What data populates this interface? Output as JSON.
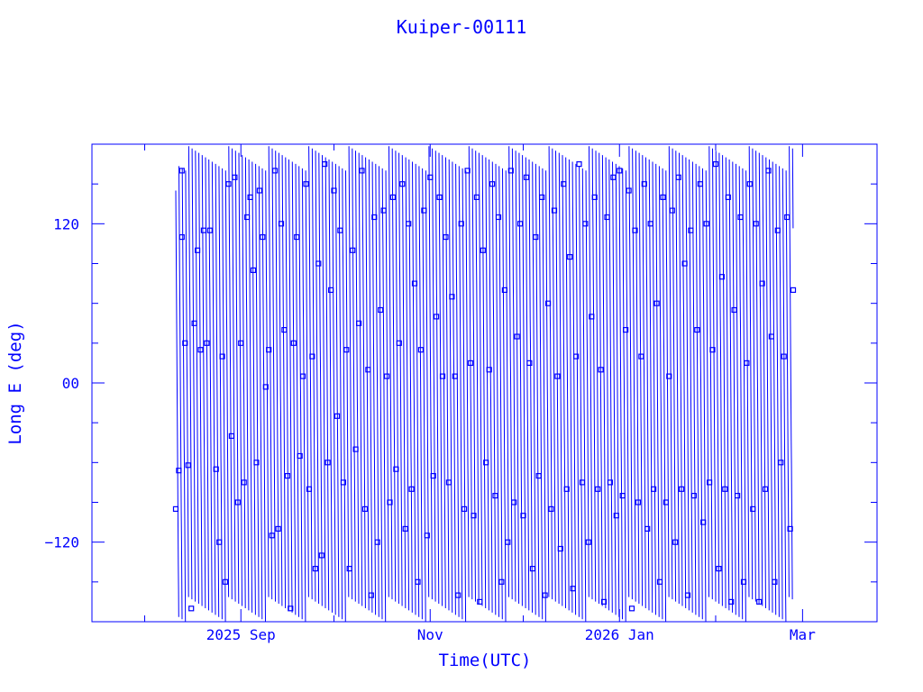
{
  "chart_data": {
    "type": "scatter",
    "title": "Kuiper-00111",
    "xlabel": "Time(UTC)",
    "ylabel": "Long E (deg)",
    "xlim": [
      "2025-07-15",
      "2026-03-25"
    ],
    "ylim": [
      -180,
      180
    ],
    "x_ticks": [
      {
        "date": "2025-09-01",
        "label": "2025 Sep"
      },
      {
        "date": "2025-11-01",
        "label": "Nov"
      },
      {
        "date": "2026-01-01",
        "label": "2026 Jan"
      },
      {
        "date": "2026-03-01",
        "label": "Mar"
      }
    ],
    "y_ticks": [
      {
        "value": -120,
        "label": "−120"
      },
      {
        "value": 0,
        "label": "00"
      },
      {
        "value": 120,
        "label": "120"
      }
    ],
    "data_range": {
      "start": "2025-08-11",
      "end": "2026-02-26"
    },
    "series": [
      {
        "values": [
          {
            "x": "2025-08-11",
            "y": -95
          },
          {
            "x": "2025-08-12",
            "y": -66
          },
          {
            "x": "2025-08-13",
            "y": 160
          },
          {
            "x": "2025-08-13",
            "y": 110
          },
          {
            "x": "2025-08-14",
            "y": 30
          },
          {
            "x": "2025-08-15",
            "y": -62
          },
          {
            "x": "2025-08-16",
            "y": -170
          },
          {
            "x": "2025-08-17",
            "y": 45
          },
          {
            "x": "2025-08-18",
            "y": 100
          },
          {
            "x": "2025-08-19",
            "y": 25
          },
          {
            "x": "2025-08-20",
            "y": 115
          },
          {
            "x": "2025-08-21",
            "y": 30
          },
          {
            "x": "2025-08-22",
            "y": 115
          },
          {
            "x": "2025-08-24",
            "y": -65
          },
          {
            "x": "2025-08-25",
            "y": -120
          },
          {
            "x": "2025-08-26",
            "y": 20
          },
          {
            "x": "2025-08-27",
            "y": -150
          },
          {
            "x": "2025-08-28",
            "y": 150
          },
          {
            "x": "2025-08-29",
            "y": -40
          },
          {
            "x": "2025-08-30",
            "y": 155
          },
          {
            "x": "2025-08-31",
            "y": -90
          },
          {
            "x": "2025-09-01",
            "y": 30
          },
          {
            "x": "2025-09-02",
            "y": -75
          },
          {
            "x": "2025-09-03",
            "y": 125
          },
          {
            "x": "2025-09-04",
            "y": 140
          },
          {
            "x": "2025-09-05",
            "y": 85
          },
          {
            "x": "2025-09-06",
            "y": -60
          },
          {
            "x": "2025-09-07",
            "y": 145
          },
          {
            "x": "2025-09-08",
            "y": 110
          },
          {
            "x": "2025-09-09",
            "y": -3
          },
          {
            "x": "2025-09-10",
            "y": 25
          },
          {
            "x": "2025-09-11",
            "y": -115
          },
          {
            "x": "2025-09-12",
            "y": 160
          },
          {
            "x": "2025-09-13",
            "y": -110
          },
          {
            "x": "2025-09-14",
            "y": 120
          },
          {
            "x": "2025-09-15",
            "y": 40
          },
          {
            "x": "2025-09-16",
            "y": -70
          },
          {
            "x": "2025-09-17",
            "y": -170
          },
          {
            "x": "2025-09-18",
            "y": 30
          },
          {
            "x": "2025-09-19",
            "y": 110
          },
          {
            "x": "2025-09-20",
            "y": -55
          },
          {
            "x": "2025-09-21",
            "y": 5
          },
          {
            "x": "2025-09-22",
            "y": 150
          },
          {
            "x": "2025-09-23",
            "y": -80
          },
          {
            "x": "2025-09-24",
            "y": 20
          },
          {
            "x": "2025-09-25",
            "y": -140
          },
          {
            "x": "2025-09-26",
            "y": 90
          },
          {
            "x": "2025-09-27",
            "y": -130
          },
          {
            "x": "2025-09-28",
            "y": 165
          },
          {
            "x": "2025-09-29",
            "y": -60
          },
          {
            "x": "2025-09-30",
            "y": 70
          },
          {
            "x": "2025-10-01",
            "y": 145
          },
          {
            "x": "2025-10-02",
            "y": -25
          },
          {
            "x": "2025-10-03",
            "y": 115
          },
          {
            "x": "2025-10-04",
            "y": -75
          },
          {
            "x": "2025-10-05",
            "y": 25
          },
          {
            "x": "2025-10-06",
            "y": -140
          },
          {
            "x": "2025-10-07",
            "y": 100
          },
          {
            "x": "2025-10-08",
            "y": -50
          },
          {
            "x": "2025-10-09",
            "y": 45
          },
          {
            "x": "2025-10-10",
            "y": 160
          },
          {
            "x": "2025-10-11",
            "y": -95
          },
          {
            "x": "2025-10-12",
            "y": 10
          },
          {
            "x": "2025-10-13",
            "y": -160
          },
          {
            "x": "2025-10-14",
            "y": 125
          },
          {
            "x": "2025-10-15",
            "y": -120
          },
          {
            "x": "2025-10-16",
            "y": 55
          },
          {
            "x": "2025-10-17",
            "y": 130
          },
          {
            "x": "2025-10-18",
            "y": 5
          },
          {
            "x": "2025-10-19",
            "y": -90
          },
          {
            "x": "2025-10-20",
            "y": 140
          },
          {
            "x": "2025-10-21",
            "y": -65
          },
          {
            "x": "2025-10-22",
            "y": 30
          },
          {
            "x": "2025-10-23",
            "y": 150
          },
          {
            "x": "2025-10-24",
            "y": -110
          },
          {
            "x": "2025-10-25",
            "y": 120
          },
          {
            "x": "2025-10-26",
            "y": -80
          },
          {
            "x": "2025-10-27",
            "y": 75
          },
          {
            "x": "2025-10-28",
            "y": -150
          },
          {
            "x": "2025-10-29",
            "y": 25
          },
          {
            "x": "2025-10-30",
            "y": 130
          },
          {
            "x": "2025-10-31",
            "y": -115
          },
          {
            "x": "2025-11-01",
            "y": 155
          },
          {
            "x": "2025-11-02",
            "y": -70
          },
          {
            "x": "2025-11-03",
            "y": 50
          },
          {
            "x": "2025-11-04",
            "y": 140
          },
          {
            "x": "2025-11-05",
            "y": 5
          },
          {
            "x": "2025-11-06",
            "y": 110
          },
          {
            "x": "2025-11-07",
            "y": -75
          },
          {
            "x": "2025-11-08",
            "y": 65
          },
          {
            "x": "2025-11-09",
            "y": 5
          },
          {
            "x": "2025-11-10",
            "y": -160
          },
          {
            "x": "2025-11-11",
            "y": 120
          },
          {
            "x": "2025-11-12",
            "y": -95
          },
          {
            "x": "2025-11-13",
            "y": 160
          },
          {
            "x": "2025-11-14",
            "y": 15
          },
          {
            "x": "2025-11-15",
            "y": -100
          },
          {
            "x": "2025-11-16",
            "y": 140
          },
          {
            "x": "2025-11-17",
            "y": -165
          },
          {
            "x": "2025-11-18",
            "y": 100
          },
          {
            "x": "2025-11-19",
            "y": -60
          },
          {
            "x": "2025-11-20",
            "y": 10
          },
          {
            "x": "2025-11-21",
            "y": 150
          },
          {
            "x": "2025-11-22",
            "y": -85
          },
          {
            "x": "2025-11-23",
            "y": 125
          },
          {
            "x": "2025-11-24",
            "y": -150
          },
          {
            "x": "2025-11-25",
            "y": 70
          },
          {
            "x": "2025-11-26",
            "y": -120
          },
          {
            "x": "2025-11-27",
            "y": 160
          },
          {
            "x": "2025-11-28",
            "y": -90
          },
          {
            "x": "2025-11-29",
            "y": 35
          },
          {
            "x": "2025-11-30",
            "y": 120
          },
          {
            "x": "2025-12-01",
            "y": -100
          },
          {
            "x": "2025-12-02",
            "y": 155
          },
          {
            "x": "2025-12-03",
            "y": 15
          },
          {
            "x": "2025-12-04",
            "y": -140
          },
          {
            "x": "2025-12-05",
            "y": 110
          },
          {
            "x": "2025-12-06",
            "y": -70
          },
          {
            "x": "2025-12-07",
            "y": 140
          },
          {
            "x": "2025-12-08",
            "y": -160
          },
          {
            "x": "2025-12-09",
            "y": 60
          },
          {
            "x": "2025-12-10",
            "y": -95
          },
          {
            "x": "2025-12-11",
            "y": 130
          },
          {
            "x": "2025-12-12",
            "y": 5
          },
          {
            "x": "2025-12-13",
            "y": -125
          },
          {
            "x": "2025-12-14",
            "y": 150
          },
          {
            "x": "2025-12-15",
            "y": -80
          },
          {
            "x": "2025-12-16",
            "y": 95
          },
          {
            "x": "2025-12-17",
            "y": -155
          },
          {
            "x": "2025-12-18",
            "y": 20
          },
          {
            "x": "2025-12-19",
            "y": 165
          },
          {
            "x": "2025-12-20",
            "y": -75
          },
          {
            "x": "2025-12-21",
            "y": 120
          },
          {
            "x": "2025-12-22",
            "y": -120
          },
          {
            "x": "2025-12-23",
            "y": 50
          },
          {
            "x": "2025-12-24",
            "y": 140
          },
          {
            "x": "2025-12-25",
            "y": -80
          },
          {
            "x": "2025-12-26",
            "y": 10
          },
          {
            "x": "2025-12-27",
            "y": -165
          },
          {
            "x": "2025-12-28",
            "y": 125
          },
          {
            "x": "2025-12-29",
            "y": -75
          },
          {
            "x": "2025-12-30",
            "y": 155
          },
          {
            "x": "2025-12-31",
            "y": -100
          },
          {
            "x": "2026-01-01",
            "y": 160
          },
          {
            "x": "2026-01-02",
            "y": -85
          },
          {
            "x": "2026-01-03",
            "y": 40
          },
          {
            "x": "2026-01-04",
            "y": 145
          },
          {
            "x": "2026-01-05",
            "y": -170
          },
          {
            "x": "2026-01-06",
            "y": 115
          },
          {
            "x": "2026-01-07",
            "y": -90
          },
          {
            "x": "2026-01-08",
            "y": 20
          },
          {
            "x": "2026-01-09",
            "y": 150
          },
          {
            "x": "2026-01-10",
            "y": -110
          },
          {
            "x": "2026-01-11",
            "y": 120
          },
          {
            "x": "2026-01-12",
            "y": -80
          },
          {
            "x": "2026-01-13",
            "y": 60
          },
          {
            "x": "2026-01-14",
            "y": -150
          },
          {
            "x": "2026-01-15",
            "y": 140
          },
          {
            "x": "2026-01-16",
            "y": -90
          },
          {
            "x": "2026-01-17",
            "y": 5
          },
          {
            "x": "2026-01-18",
            "y": 130
          },
          {
            "x": "2026-01-19",
            "y": -120
          },
          {
            "x": "2026-01-20",
            "y": 155
          },
          {
            "x": "2026-01-21",
            "y": -80
          },
          {
            "x": "2026-01-22",
            "y": 90
          },
          {
            "x": "2026-01-23",
            "y": -160
          },
          {
            "x": "2026-01-24",
            "y": 115
          },
          {
            "x": "2026-01-25",
            "y": -85
          },
          {
            "x": "2026-01-26",
            "y": 40
          },
          {
            "x": "2026-01-27",
            "y": 150
          },
          {
            "x": "2026-01-28",
            "y": -105
          },
          {
            "x": "2026-01-29",
            "y": 120
          },
          {
            "x": "2026-01-30",
            "y": -75
          },
          {
            "x": "2026-01-31",
            "y": 25
          },
          {
            "x": "2026-02-01",
            "y": 165
          },
          {
            "x": "2026-02-02",
            "y": -140
          },
          {
            "x": "2026-02-03",
            "y": 80
          },
          {
            "x": "2026-02-04",
            "y": -80
          },
          {
            "x": "2026-02-05",
            "y": 140
          },
          {
            "x": "2026-02-06",
            "y": -165
          },
          {
            "x": "2026-02-07",
            "y": 55
          },
          {
            "x": "2026-02-08",
            "y": -85
          },
          {
            "x": "2026-02-09",
            "y": 125
          },
          {
            "x": "2026-02-10",
            "y": -150
          },
          {
            "x": "2026-02-11",
            "y": 15
          },
          {
            "x": "2026-02-12",
            "y": 150
          },
          {
            "x": "2026-02-13",
            "y": -95
          },
          {
            "x": "2026-02-14",
            "y": 120
          },
          {
            "x": "2026-02-15",
            "y": -165
          },
          {
            "x": "2026-02-16",
            "y": 75
          },
          {
            "x": "2026-02-17",
            "y": -80
          },
          {
            "x": "2026-02-18",
            "y": 160
          },
          {
            "x": "2026-02-19",
            "y": 35
          },
          {
            "x": "2026-02-20",
            "y": -150
          },
          {
            "x": "2026-02-21",
            "y": 115
          },
          {
            "x": "2026-02-22",
            "y": -60
          },
          {
            "x": "2026-02-23",
            "y": 20
          },
          {
            "x": "2026-02-24",
            "y": 125
          },
          {
            "x": "2026-02-25",
            "y": -110
          },
          {
            "x": "2026-02-26",
            "y": 70
          }
        ]
      }
    ],
    "grid": false,
    "legend": "none",
    "colors": {
      "foreground": "#0000ff",
      "background": "#ffffff"
    }
  }
}
